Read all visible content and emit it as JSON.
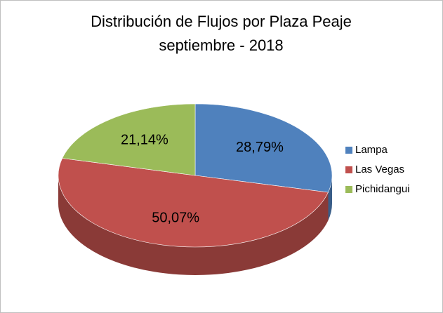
{
  "chart_data": {
    "type": "pie",
    "three_d": true,
    "title": "Distribución de Flujos por Plaza Peaje",
    "subtitle": "septiembre - 2018",
    "categories": [
      "Lampa",
      "Las Vegas",
      "Pichidangui"
    ],
    "values": [
      28.79,
      50.07,
      21.14
    ],
    "value_labels": [
      "28,79%",
      "50,07%",
      "21,14%"
    ],
    "colors": [
      "#4f81bd",
      "#c0504d",
      "#9bbb59"
    ],
    "legend": "right"
  }
}
